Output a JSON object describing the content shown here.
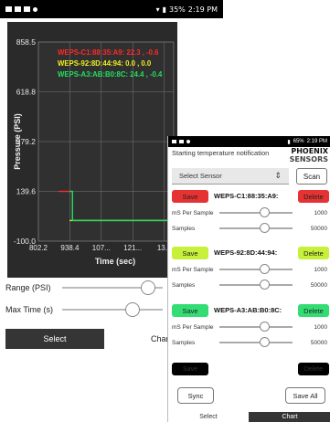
{
  "phone_a": {
    "status_bar": {
      "time": "2:19 PM",
      "battery": "35%"
    },
    "sliders": [
      {
        "label": "Range (PSI)",
        "value_fraction": 0.85
      },
      {
        "label": "Max Time (s)",
        "value_fraction": 0.7
      }
    ],
    "tabs": {
      "select": "Select",
      "chart": "Chart"
    }
  },
  "chart_data": {
    "type": "line",
    "title": "",
    "xlabel": "Time (sec)",
    "ylabel": "Pressure (PSI)",
    "xlim": [
      802.2,
      1389.0
    ],
    "ylim": [
      -100.0,
      858.5
    ],
    "x_ticks": [
      "802.2",
      "938.4",
      "107...",
      "121...",
      "13..."
    ],
    "y_ticks": [
      "858.5",
      "618.8",
      "379.2",
      "139.6",
      "-100.0"
    ],
    "grid": true,
    "legend_position": "top-right",
    "series": [
      {
        "name": "WEPS-C1:88:35:A9: 22.3 , -0.6",
        "color": "#ff2a2a",
        "x": [
          890,
          938
        ],
        "y": [
          139.6,
          139.6
        ]
      },
      {
        "name": "WEPS-92:8D:44:94: 0.0 , 0.0",
        "color": "#f0f020",
        "x": [
          938,
          1389
        ],
        "y": [
          -0.6,
          -0.6
        ]
      },
      {
        "name": "WEPS-A3:AB:B0:8C: 24.4 , -0.4",
        "color": "#22e060",
        "x": [
          938,
          950,
          950,
          1389
        ],
        "y": [
          139.6,
          139.6,
          -0.4,
          -0.4
        ]
      }
    ]
  },
  "phone_b": {
    "status_bar": {
      "time": "2:19 PM",
      "battery": "65%"
    },
    "notify_title": "Starting temperature notification",
    "logo": {
      "line1": "PHOENIX",
      "line2": "SENSORS"
    },
    "select_sensor": {
      "label": "Select Sensor"
    },
    "scan_label": "Scan",
    "sensors": [
      {
        "id": "WEPS-C1:88:35:A9:",
        "save_label": "Save",
        "delete_label": "Delete",
        "save_color": "#e53333",
        "delete_color": "#e53333",
        "ms_label": "mS Per Sample",
        "ms_value": "1000",
        "ms_fraction": 0.62,
        "samples_label": "Samples",
        "samples_value": "50000",
        "samples_fraction": 0.62
      },
      {
        "id": "WEPS-92:8D:44:94:",
        "save_label": "Save",
        "delete_label": "Delete",
        "save_color": "#c6f03a",
        "delete_color": "#c6f03a",
        "ms_label": "mS Per Sample",
        "ms_value": "1000",
        "ms_fraction": 0.62,
        "samples_label": "Samples",
        "samples_value": "50000",
        "samples_fraction": 0.62
      },
      {
        "id": "WEPS-A3:AB:B0:8C:",
        "save_label": "Save",
        "delete_label": "Delete",
        "save_color": "#34dd74",
        "delete_color": "#34dd74",
        "ms_label": "mS Per Sample",
        "ms_value": "1000",
        "ms_fraction": 0.62,
        "samples_label": "Samples",
        "samples_value": "50000",
        "samples_fraction": 0.62
      }
    ],
    "extra_row": {
      "save_label": "Save",
      "delete_label": "Delete"
    },
    "sync_label": "Sync",
    "save_all_label": "Save All",
    "tabs": {
      "select": "Select",
      "chart": "Chart"
    }
  }
}
